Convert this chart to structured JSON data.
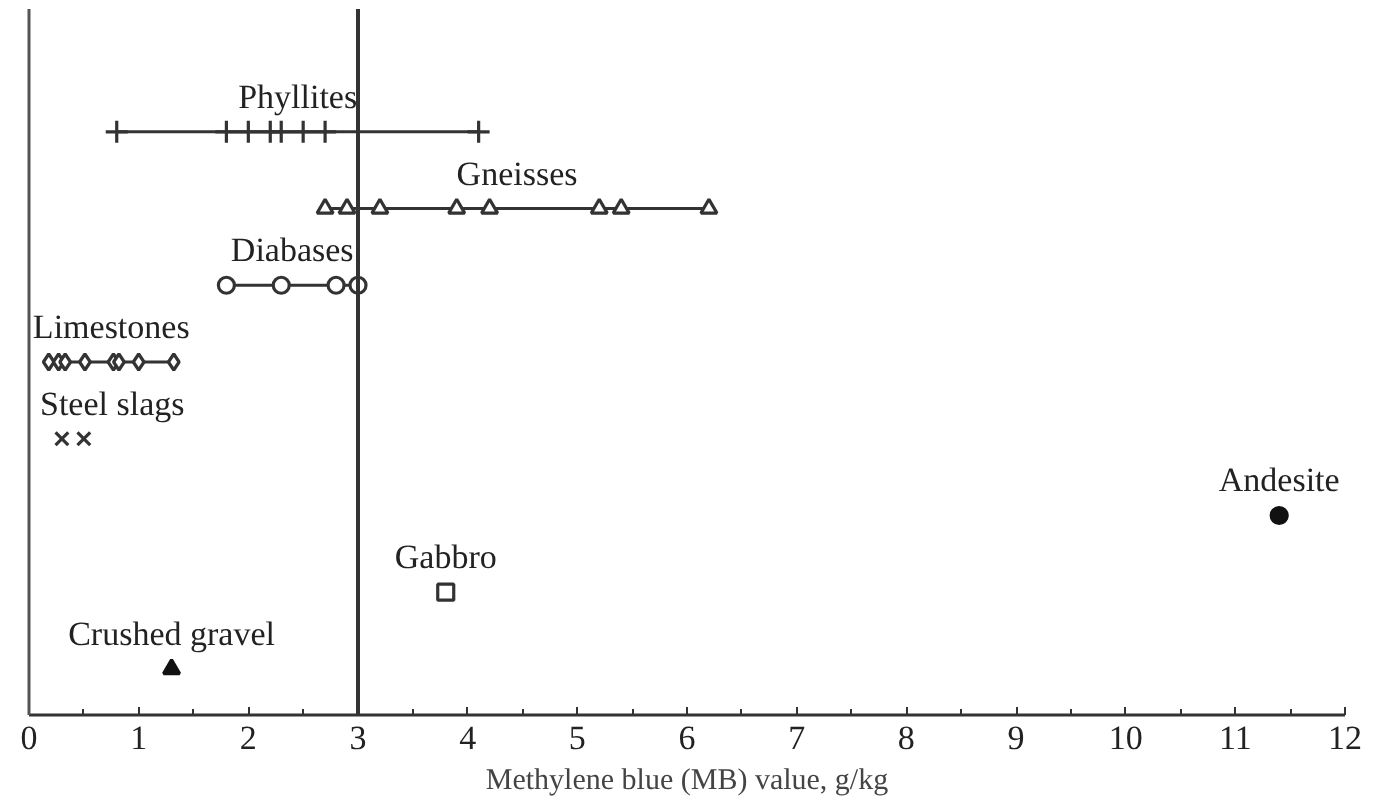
{
  "chart_data": {
    "type": "scatter",
    "orientation": "horizontal",
    "xlabel": "Methylene blue (MB) value, g/kg",
    "categories": [
      "Phyllites",
      "Gneisses",
      "Diabases",
      "Limestones",
      "Steel slags",
      "Andesite",
      "Gabbro",
      "Crushed gravel"
    ],
    "series": [
      {
        "type": "line",
        "marker": "cross",
        "color": "#333333",
        "x": [
          "Phyllites",
          "Phyllites",
          "Phyllites",
          "Phyllites",
          "Phyllites",
          "Phyllites",
          "Phyllites",
          "Phyllites"
        ],
        "values": [
          0.8,
          1.8,
          2.0,
          2.2,
          2.3,
          2.5,
          2.7,
          4.1
        ]
      },
      {
        "type": "line",
        "marker": "triangle",
        "color": "#333333",
        "x": [
          "Gneisses",
          "Gneisses",
          "Gneisses",
          "Gneisses",
          "Gneisses",
          "Gneisses",
          "Gneisses",
          "Gneisses"
        ],
        "values": [
          2.7,
          2.9,
          3.2,
          3.9,
          4.2,
          5.2,
          5.4,
          6.2
        ]
      },
      {
        "type": "line",
        "marker": "circle",
        "color": "#333333",
        "x": [
          "Diabases",
          "Diabases",
          "Diabases",
          "Diabases"
        ],
        "values": [
          1.8,
          2.3,
          2.8,
          3.0
        ]
      },
      {
        "type": "line",
        "marker": "diamond",
        "color": "#333333",
        "x": [
          "Limestones",
          "Limestones",
          "Limestones",
          "Limestones",
          "Limestones",
          "Limestones",
          "Limestones",
          "Limestones"
        ],
        "values": [
          0.18,
          0.27,
          0.33,
          0.51,
          0.77,
          0.82,
          1.0,
          1.32
        ]
      },
      {
        "marker": "x",
        "color": "#333333",
        "x": [
          "Steel slags",
          "Steel slags"
        ],
        "values": [
          0.3,
          0.5
        ]
      },
      {
        "marker": "circle",
        "color": "#111111",
        "x": [
          "Andesite"
        ],
        "values": [
          11.4
        ]
      },
      {
        "marker": "square",
        "color": "#333333",
        "x": [
          "Gabbro"
        ],
        "values": [
          3.8
        ]
      },
      {
        "marker": "triangle",
        "color": "#111111",
        "x": [
          "Crushed gravel"
        ],
        "values": [
          1.3
        ]
      }
    ],
    "ref_lines": [
      {
        "axis": "x",
        "value": 3,
        "color": "#333333"
      }
    ],
    "xlim": [
      0,
      12
    ],
    "xticks": [
      0,
      {
        "value": 0.5,
        "label": null
      },
      1,
      {
        "value": 1.5,
        "label": null
      },
      2,
      {
        "value": 2.5,
        "label": null
      },
      3,
      {
        "value": 3.5,
        "label": null
      },
      4,
      {
        "value": 4.5,
        "label": null
      },
      5,
      {
        "value": 5.5,
        "label": null
      },
      6,
      {
        "value": 6.5,
        "label": null
      },
      7,
      {
        "value": 7.5,
        "label": null
      },
      8,
      {
        "value": 8.5,
        "label": null
      },
      9,
      {
        "value": 9.5,
        "label": null
      },
      10,
      {
        "value": 10.5,
        "label": null
      },
      11,
      {
        "value": 11.5,
        "label": null
      },
      12
    ],
    "tick_labels": "x",
    "grid": false
  }
}
